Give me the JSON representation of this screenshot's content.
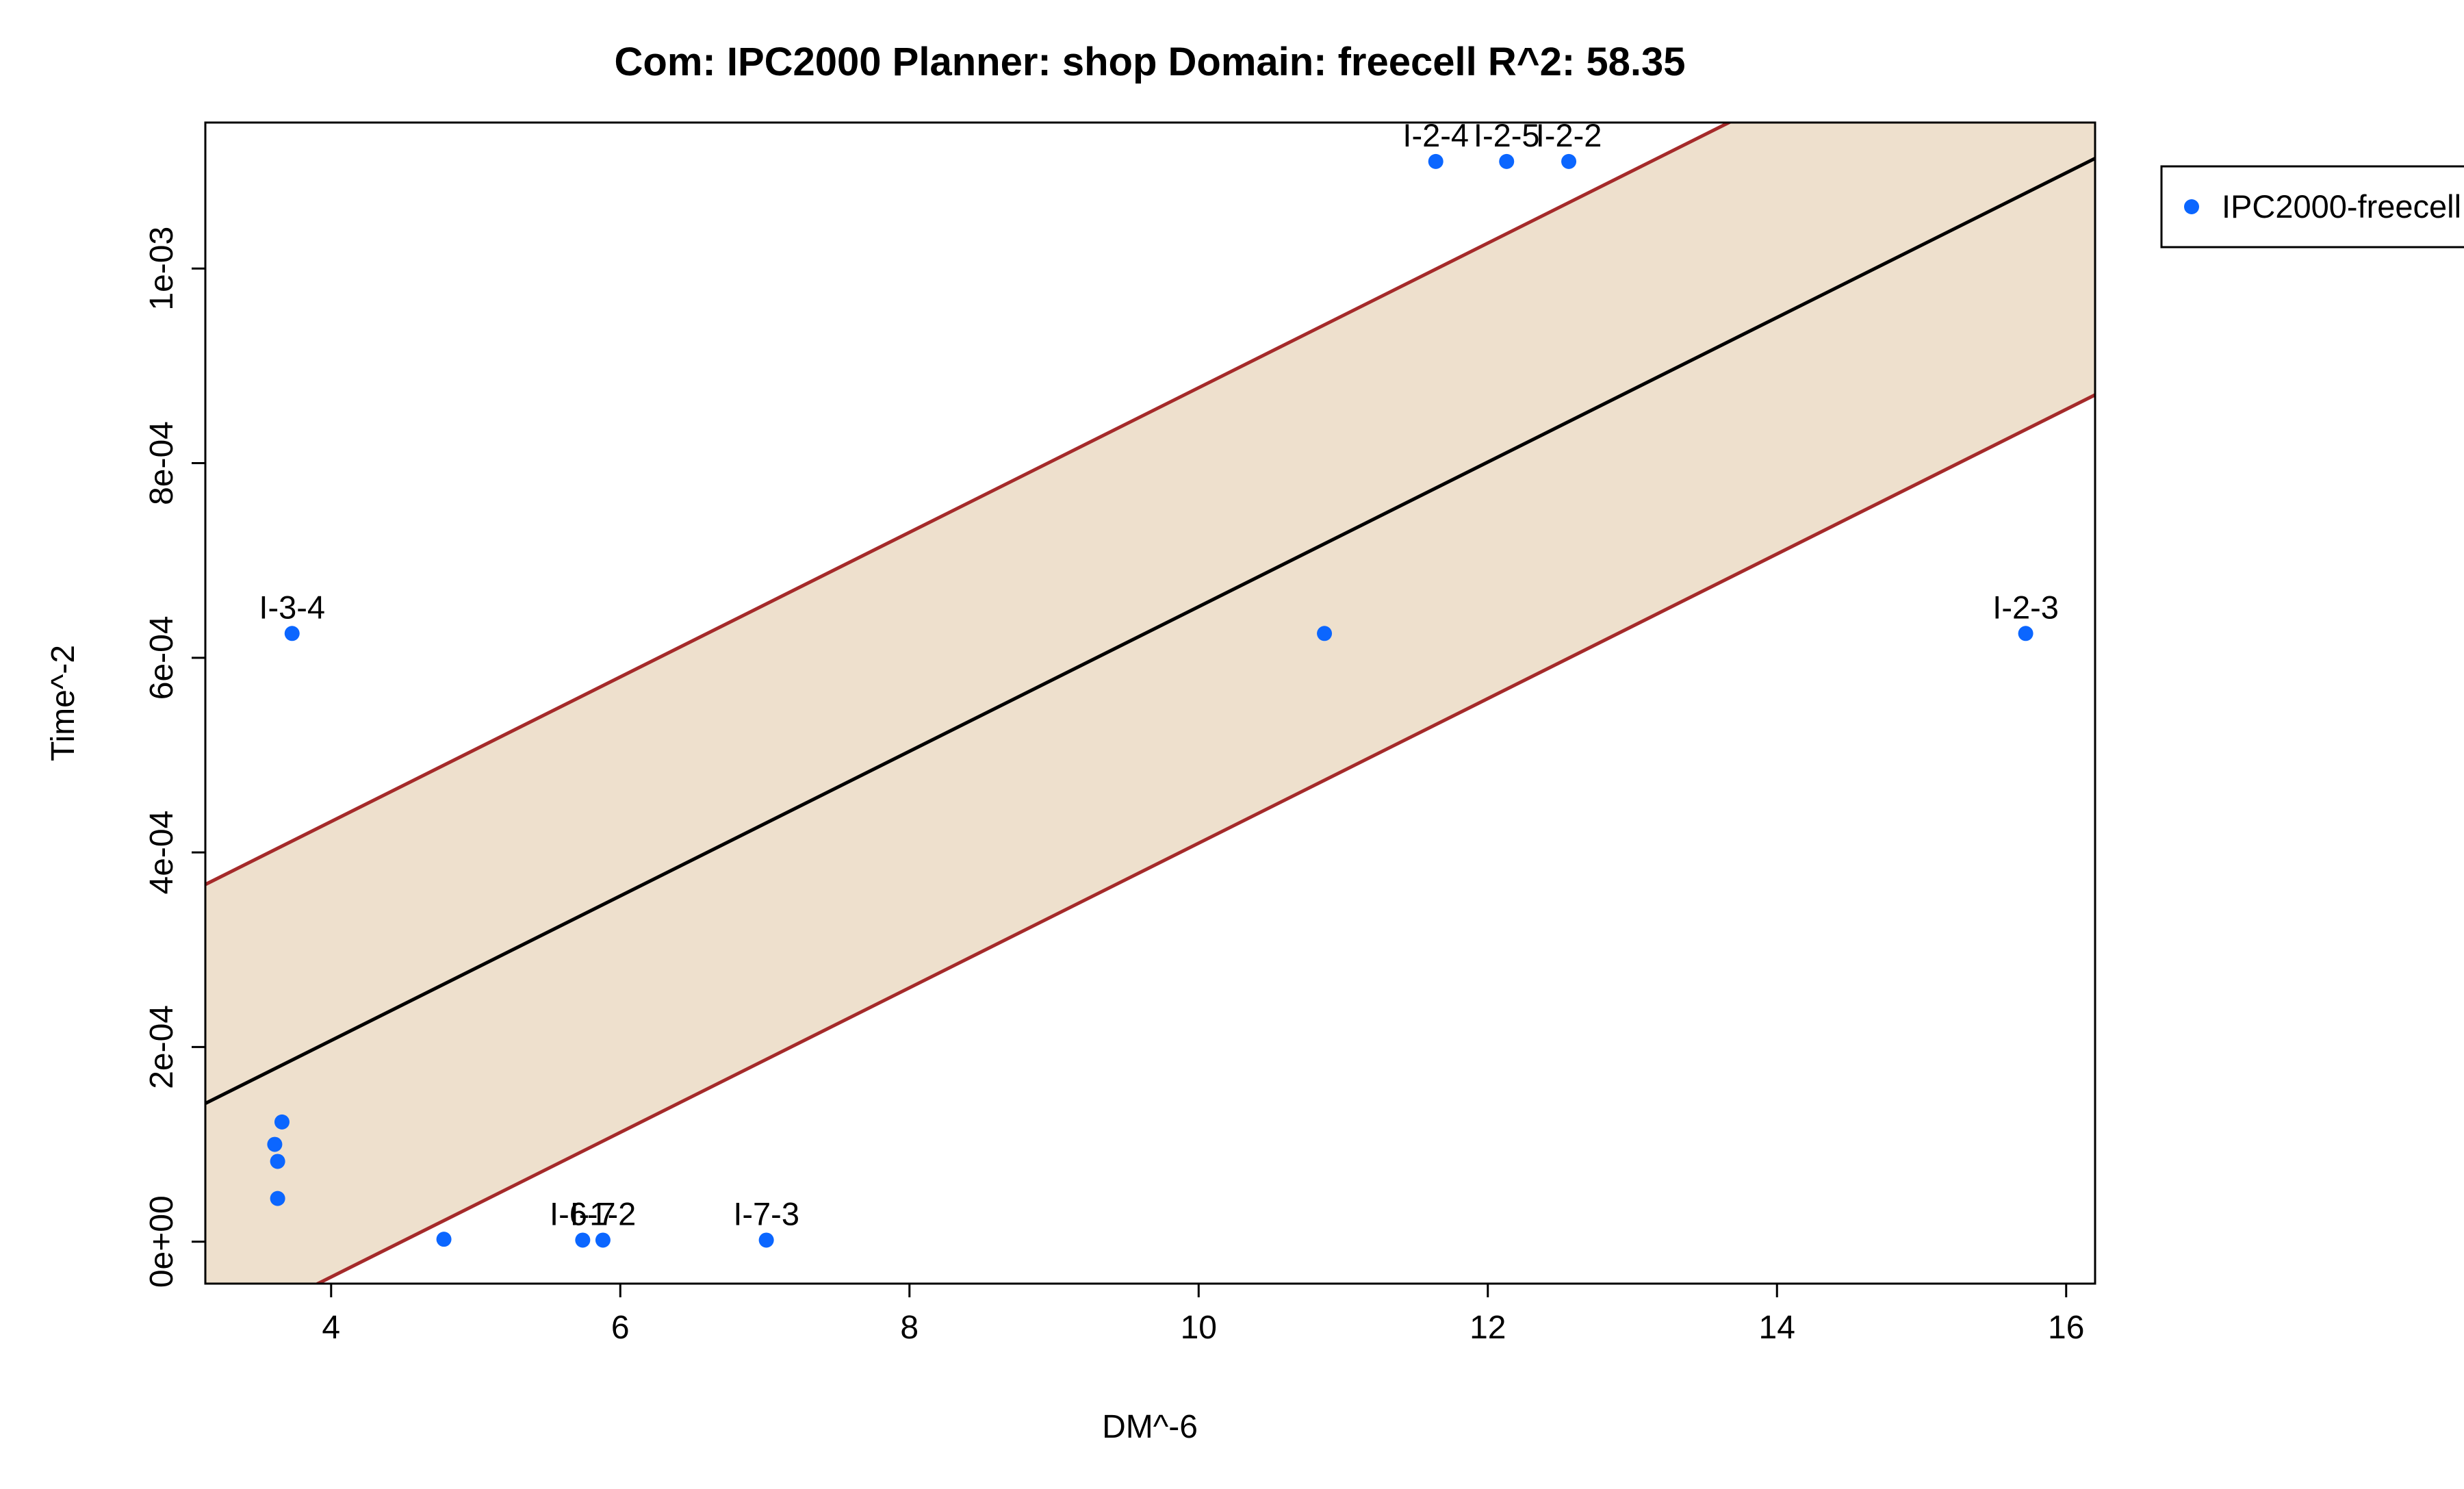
{
  "chart_data": {
    "type": "scatter",
    "title": "Com: IPC2000 Planner: shop Domain: freecell R^2: 58.35",
    "xlabel": "DM^-6",
    "ylabel": "Time^-2",
    "xlim": [
      3.13,
      16.2
    ],
    "ylim": [
      -4.31e-05,
      0.00115
    ],
    "x_ticks": [
      4,
      6,
      8,
      10,
      12,
      14,
      16
    ],
    "x_tick_labels": [
      "4",
      "6",
      "8",
      "10",
      "12",
      "14",
      "16"
    ],
    "y_ticks": [
      0,
      0.0002,
      0.0004,
      0.0006,
      0.0008,
      0.001
    ],
    "y_tick_labels": [
      "0e+00",
      "2e-04",
      "4e-04",
      "6e-04",
      "8e-04",
      "1e-03"
    ],
    "grid": false,
    "legend_position": "right",
    "series": [
      {
        "name": "IPC2000-freecell",
        "color": "#0b66ff",
        "points": [
          {
            "x": 3.73,
            "y": 0.000625,
            "label": "I-3-4"
          },
          {
            "x": 3.66,
            "y": 0.000123,
            "label": ""
          },
          {
            "x": 3.61,
            "y": 0.0001,
            "label": ""
          },
          {
            "x": 3.63,
            "y": 8.25e-05,
            "label": ""
          },
          {
            "x": 3.63,
            "y": 4.44e-05,
            "label": ""
          },
          {
            "x": 4.78,
            "y": 2.5e-06,
            "label": ""
          },
          {
            "x": 5.74,
            "y": 1.6e-06,
            "label": "I-6-7"
          },
          {
            "x": 5.88,
            "y": 1.6e-06,
            "label": "I-1-2"
          },
          {
            "x": 7.01,
            "y": 1.6e-06,
            "label": "I-7-3"
          },
          {
            "x": 10.87,
            "y": 0.000625,
            "label": ""
          },
          {
            "x": 11.64,
            "y": 0.00111,
            "label": "I-2-4"
          },
          {
            "x": 12.13,
            "y": 0.00111,
            "label": "I-2-5"
          },
          {
            "x": 12.56,
            "y": 0.00111,
            "label": "I-2-2"
          },
          {
            "x": 15.72,
            "y": 0.000625,
            "label": "I-2-3"
          }
        ]
      }
    ],
    "regression": {
      "intercept": -9.05e-05,
      "slope": 7.43e-05,
      "band_upper_offset": 0.000225,
      "band_lower_offset": -0.000243,
      "line_color": "#000000",
      "band_line_color": "#a52a2a",
      "band_fill_color": "#eee0cd"
    }
  }
}
